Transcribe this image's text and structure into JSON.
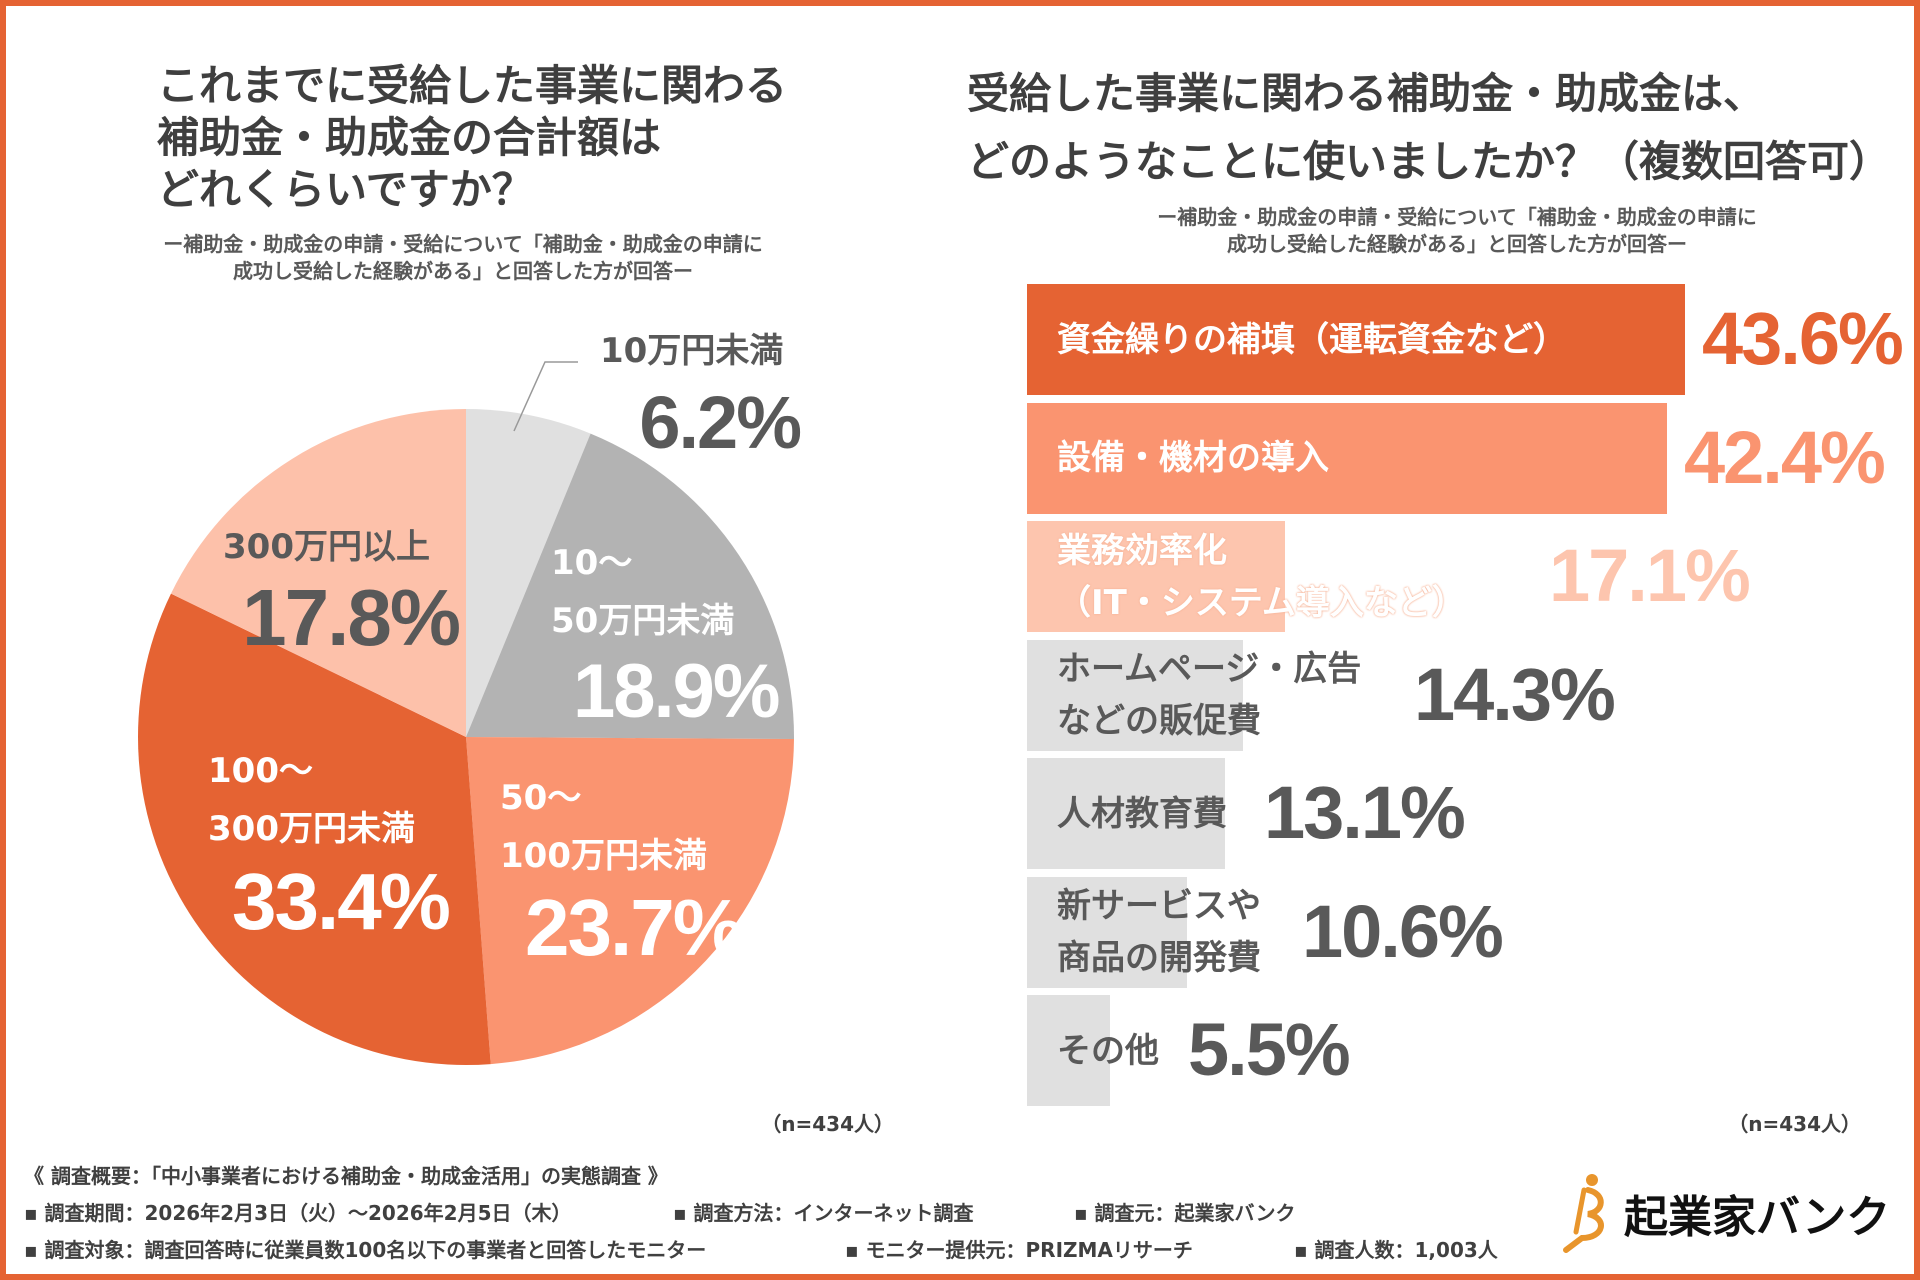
{
  "colors": {
    "border": "#E56333",
    "dark_orange": "#E56333",
    "salmon": "#FA9470",
    "peach": "#FDC5AE",
    "grey": "#B3B3B3",
    "light_grey": "#E0E0E0",
    "text": "#595959"
  },
  "left": {
    "title": [
      "これまでに受給した事業に関わる",
      "補助金・助成金の合計額は",
      "どれくらいですか？"
    ],
    "subtitle": [
      "ー補助金・助成金の申請・受給について「補助金・助成金の申請に",
      "成功し受給した経験がある」と回答した方が回答ー"
    ],
    "n": "（n=434人）"
  },
  "right": {
    "title": [
      "受給した事業に関わる補助金・助成金は、",
      "どのようなことに使いましたか？（複数回答可）"
    ],
    "subtitle": [
      "ー補助金・助成金の申請・受給について「補助金・助成金の申請に",
      "成功し受給した経験がある」と回答した方が回答ー"
    ],
    "n": "（n=434人）"
  },
  "chart_data": [
    {
      "type": "pie",
      "start": "top",
      "direction": "clockwise",
      "slices": [
        {
          "label": [
            "10万円未満"
          ],
          "value": 6.2,
          "display": "6.2%",
          "color": "#E0E0E0"
        },
        {
          "label": [
            "10〜",
            "50万円未満"
          ],
          "value": 18.9,
          "display": "18.9%",
          "color": "#B3B3B3"
        },
        {
          "label": [
            "50〜",
            "100万円未満"
          ],
          "value": 23.7,
          "display": "23.7%",
          "color": "#FA9470"
        },
        {
          "label": [
            "100〜",
            "300万円未満"
          ],
          "value": 33.4,
          "display": "33.4%",
          "color": "#E56333"
        },
        {
          "label": [
            "300万円以上"
          ],
          "value": 17.8,
          "display": "17.8%",
          "color": "#FDC1AA"
        }
      ]
    },
    {
      "type": "bar",
      "orientation": "horizontal",
      "unit": "%",
      "bars": [
        {
          "label": [
            "資金繰りの補填（運転資金など）"
          ],
          "value": 43.6,
          "display": "43.6%",
          "color": "#E56333",
          "pct_color": "#E56333"
        },
        {
          "label": [
            "設備・機材の導入"
          ],
          "value": 42.4,
          "display": "42.4%",
          "color": "#FA9470",
          "pct_color": "#FA9470"
        },
        {
          "label": [
            "業務効率化",
            "（IT・システム導入など）"
          ],
          "value": 17.1,
          "display": "17.1%",
          "color": "#FDC5AE",
          "pct_color": "#FDC5AE"
        },
        {
          "label": [
            "ホームページ・広告",
            "などの販促費"
          ],
          "value": 14.3,
          "display": "14.3%",
          "color": "#E0E0E0",
          "pct_color": "#595959"
        },
        {
          "label": [
            "人材教育費"
          ],
          "value": 13.1,
          "display": "13.1%",
          "color": "#E0E0E0",
          "pct_color": "#595959"
        },
        {
          "label": [
            "新サービスや",
            "商品の開発費"
          ],
          "value": 10.6,
          "display": "10.6%",
          "color": "#E0E0E0",
          "pct_color": "#595959"
        },
        {
          "label": [
            "その他"
          ],
          "value": 5.5,
          "display": "5.5%",
          "color": "#E0E0E0",
          "pct_color": "#595959"
        }
      ]
    }
  ],
  "footer": {
    "heading": "《 調査概要：「中小事業者における補助金・助成金活用」の実態調査 》",
    "period": "▪ 調査期間：2026年2月3日（火）〜2026年2月5日（木）",
    "method": "▪ 調査方法：インターネット調査",
    "org": "▪ 調査元：起業家バンク",
    "target": "▪ 調査対象：調査回答時に従業員数100名以下の事業者と回答したモニター",
    "provider": "▪ モニター提供元：PRIZMAリサーチ",
    "count": "▪ 調査人数：1,003人"
  },
  "logo": {
    "text": "起業家バンク",
    "icon": "person-figure-icon"
  }
}
